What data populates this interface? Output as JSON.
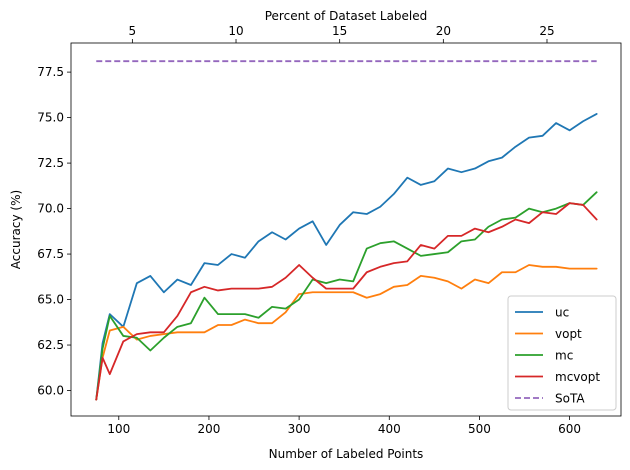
{
  "chart_data": {
    "type": "line",
    "xlabel": "Number of Labeled Points",
    "ylabel": "Accuracy (%)",
    "top_xlabel": "Percent of Dataset Labeled",
    "xlim": [
      47,
      657
    ],
    "ylim": [
      58.6,
      79.1
    ],
    "top_xlim": [
      2.04,
      28.57
    ],
    "x_ticks": [
      100,
      200,
      300,
      400,
      500,
      600
    ],
    "x_tick_labels": [
      "100",
      "200",
      "300",
      "400",
      "500",
      "600"
    ],
    "y_ticks": [
      60.0,
      62.5,
      65.0,
      67.5,
      70.0,
      72.5,
      75.0,
      77.5
    ],
    "y_tick_labels": [
      "60.0",
      "62.5",
      "65.0",
      "67.5",
      "70.0",
      "72.5",
      "75.0",
      "77.5"
    ],
    "top_x_ticks": [
      5,
      10,
      15,
      20,
      25
    ],
    "top_x_tick_labels": [
      "5",
      "10",
      "15",
      "20",
      "25"
    ],
    "legend_position": "lower-right",
    "x": [
      75,
      82,
      90,
      105,
      120,
      135,
      150,
      165,
      180,
      195,
      210,
      225,
      240,
      255,
      270,
      285,
      300,
      315,
      330,
      345,
      360,
      375,
      390,
      405,
      420,
      435,
      450,
      465,
      480,
      495,
      510,
      525,
      540,
      555,
      570,
      585,
      600,
      615,
      630
    ],
    "series": [
      {
        "name": "uc",
        "color": "#1f77b4",
        "dashed": false,
        "values": [
          59.5,
          62.6,
          64.2,
          63.5,
          65.9,
          66.3,
          65.4,
          66.1,
          65.8,
          67.0,
          66.9,
          67.5,
          67.3,
          68.2,
          68.7,
          68.3,
          68.9,
          69.3,
          68.0,
          69.1,
          69.8,
          69.7,
          70.1,
          70.8,
          71.7,
          71.3,
          71.5,
          72.2,
          72.0,
          72.2,
          72.6,
          72.8,
          73.4,
          73.9,
          74.0,
          74.7,
          74.3,
          74.8,
          75.2
        ]
      },
      {
        "name": "vopt",
        "color": "#ff7f0e",
        "dashed": false,
        "values": [
          59.5,
          61.8,
          63.3,
          63.5,
          62.8,
          63.0,
          63.1,
          63.2,
          63.2,
          63.2,
          63.6,
          63.6,
          63.9,
          63.7,
          63.7,
          64.3,
          65.3,
          65.4,
          65.4,
          65.4,
          65.4,
          65.1,
          65.3,
          65.7,
          65.8,
          66.3,
          66.2,
          66.0,
          65.6,
          66.1,
          65.9,
          66.5,
          66.5,
          66.9,
          66.8,
          66.8,
          66.7,
          66.7,
          66.7
        ]
      },
      {
        "name": "mc",
        "color": "#2ca02c",
        "dashed": false,
        "values": [
          59.5,
          62.3,
          64.1,
          63.0,
          62.9,
          62.2,
          62.9,
          63.5,
          63.7,
          65.1,
          64.2,
          64.2,
          64.2,
          64.0,
          64.6,
          64.5,
          65.0,
          66.1,
          65.9,
          66.1,
          66.0,
          67.8,
          68.1,
          68.2,
          67.8,
          67.4,
          67.5,
          67.6,
          68.2,
          68.3,
          69.0,
          69.4,
          69.5,
          70.0,
          69.8,
          70.0,
          70.3,
          70.2,
          70.9
        ]
      },
      {
        "name": "mcvopt",
        "color": "#d62728",
        "dashed": false,
        "values": [
          59.5,
          61.8,
          60.9,
          62.7,
          63.1,
          63.2,
          63.2,
          64.1,
          65.4,
          65.7,
          65.5,
          65.6,
          65.6,
          65.6,
          65.7,
          66.2,
          66.9,
          66.2,
          65.6,
          65.6,
          65.6,
          66.5,
          66.8,
          67.0,
          67.1,
          68.0,
          67.8,
          68.5,
          68.5,
          68.9,
          68.7,
          69.0,
          69.4,
          69.2,
          69.8,
          69.7,
          70.3,
          70.2,
          69.4
        ]
      },
      {
        "name": "SoTA",
        "color": "#9467bd",
        "dashed": true,
        "values": [
          78.1,
          78.1,
          78.1,
          78.1,
          78.1,
          78.1,
          78.1,
          78.1,
          78.1,
          78.1,
          78.1,
          78.1,
          78.1,
          78.1,
          78.1,
          78.1,
          78.1,
          78.1,
          78.1,
          78.1,
          78.1,
          78.1,
          78.1,
          78.1,
          78.1,
          78.1,
          78.1,
          78.1,
          78.1,
          78.1,
          78.1,
          78.1,
          78.1,
          78.1,
          78.1,
          78.1,
          78.1,
          78.1,
          78.1
        ]
      }
    ]
  }
}
